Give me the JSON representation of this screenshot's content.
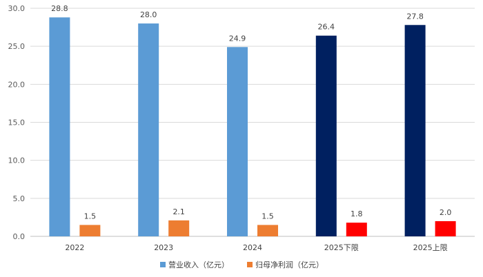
{
  "chart_data": {
    "type": "bar",
    "title": "",
    "xlabel": "",
    "ylabel": "",
    "ylim": [
      0,
      30
    ],
    "yticks": [
      "0.0",
      "5.0",
      "10.0",
      "15.0",
      "20.0",
      "25.0",
      "30.0"
    ],
    "grid": true,
    "legend_position": "bottom",
    "categories": [
      "2022",
      "2023",
      "2024",
      "2025下限",
      "2025上限"
    ],
    "series": [
      {
        "name": "营业收入（亿元）",
        "values": [
          28.8,
          28.0,
          24.9,
          26.4,
          27.8
        ],
        "labels": [
          "28.8",
          "28.0",
          "24.9",
          "26.4",
          "27.8"
        ],
        "colors": [
          "#5b9bd5",
          "#5b9bd5",
          "#5b9bd5",
          "#002060",
          "#002060"
        ],
        "legend_color": "#5b9bd5"
      },
      {
        "name": "归母净利润（亿元）",
        "values": [
          1.5,
          2.1,
          1.5,
          1.8,
          2.0
        ],
        "labels": [
          "1.5",
          "2.1",
          "1.5",
          "1.8",
          "2.0"
        ],
        "colors": [
          "#ed7d31",
          "#ed7d31",
          "#ed7d31",
          "#ff0000",
          "#ff0000"
        ],
        "legend_color": "#ed7d31"
      }
    ]
  }
}
